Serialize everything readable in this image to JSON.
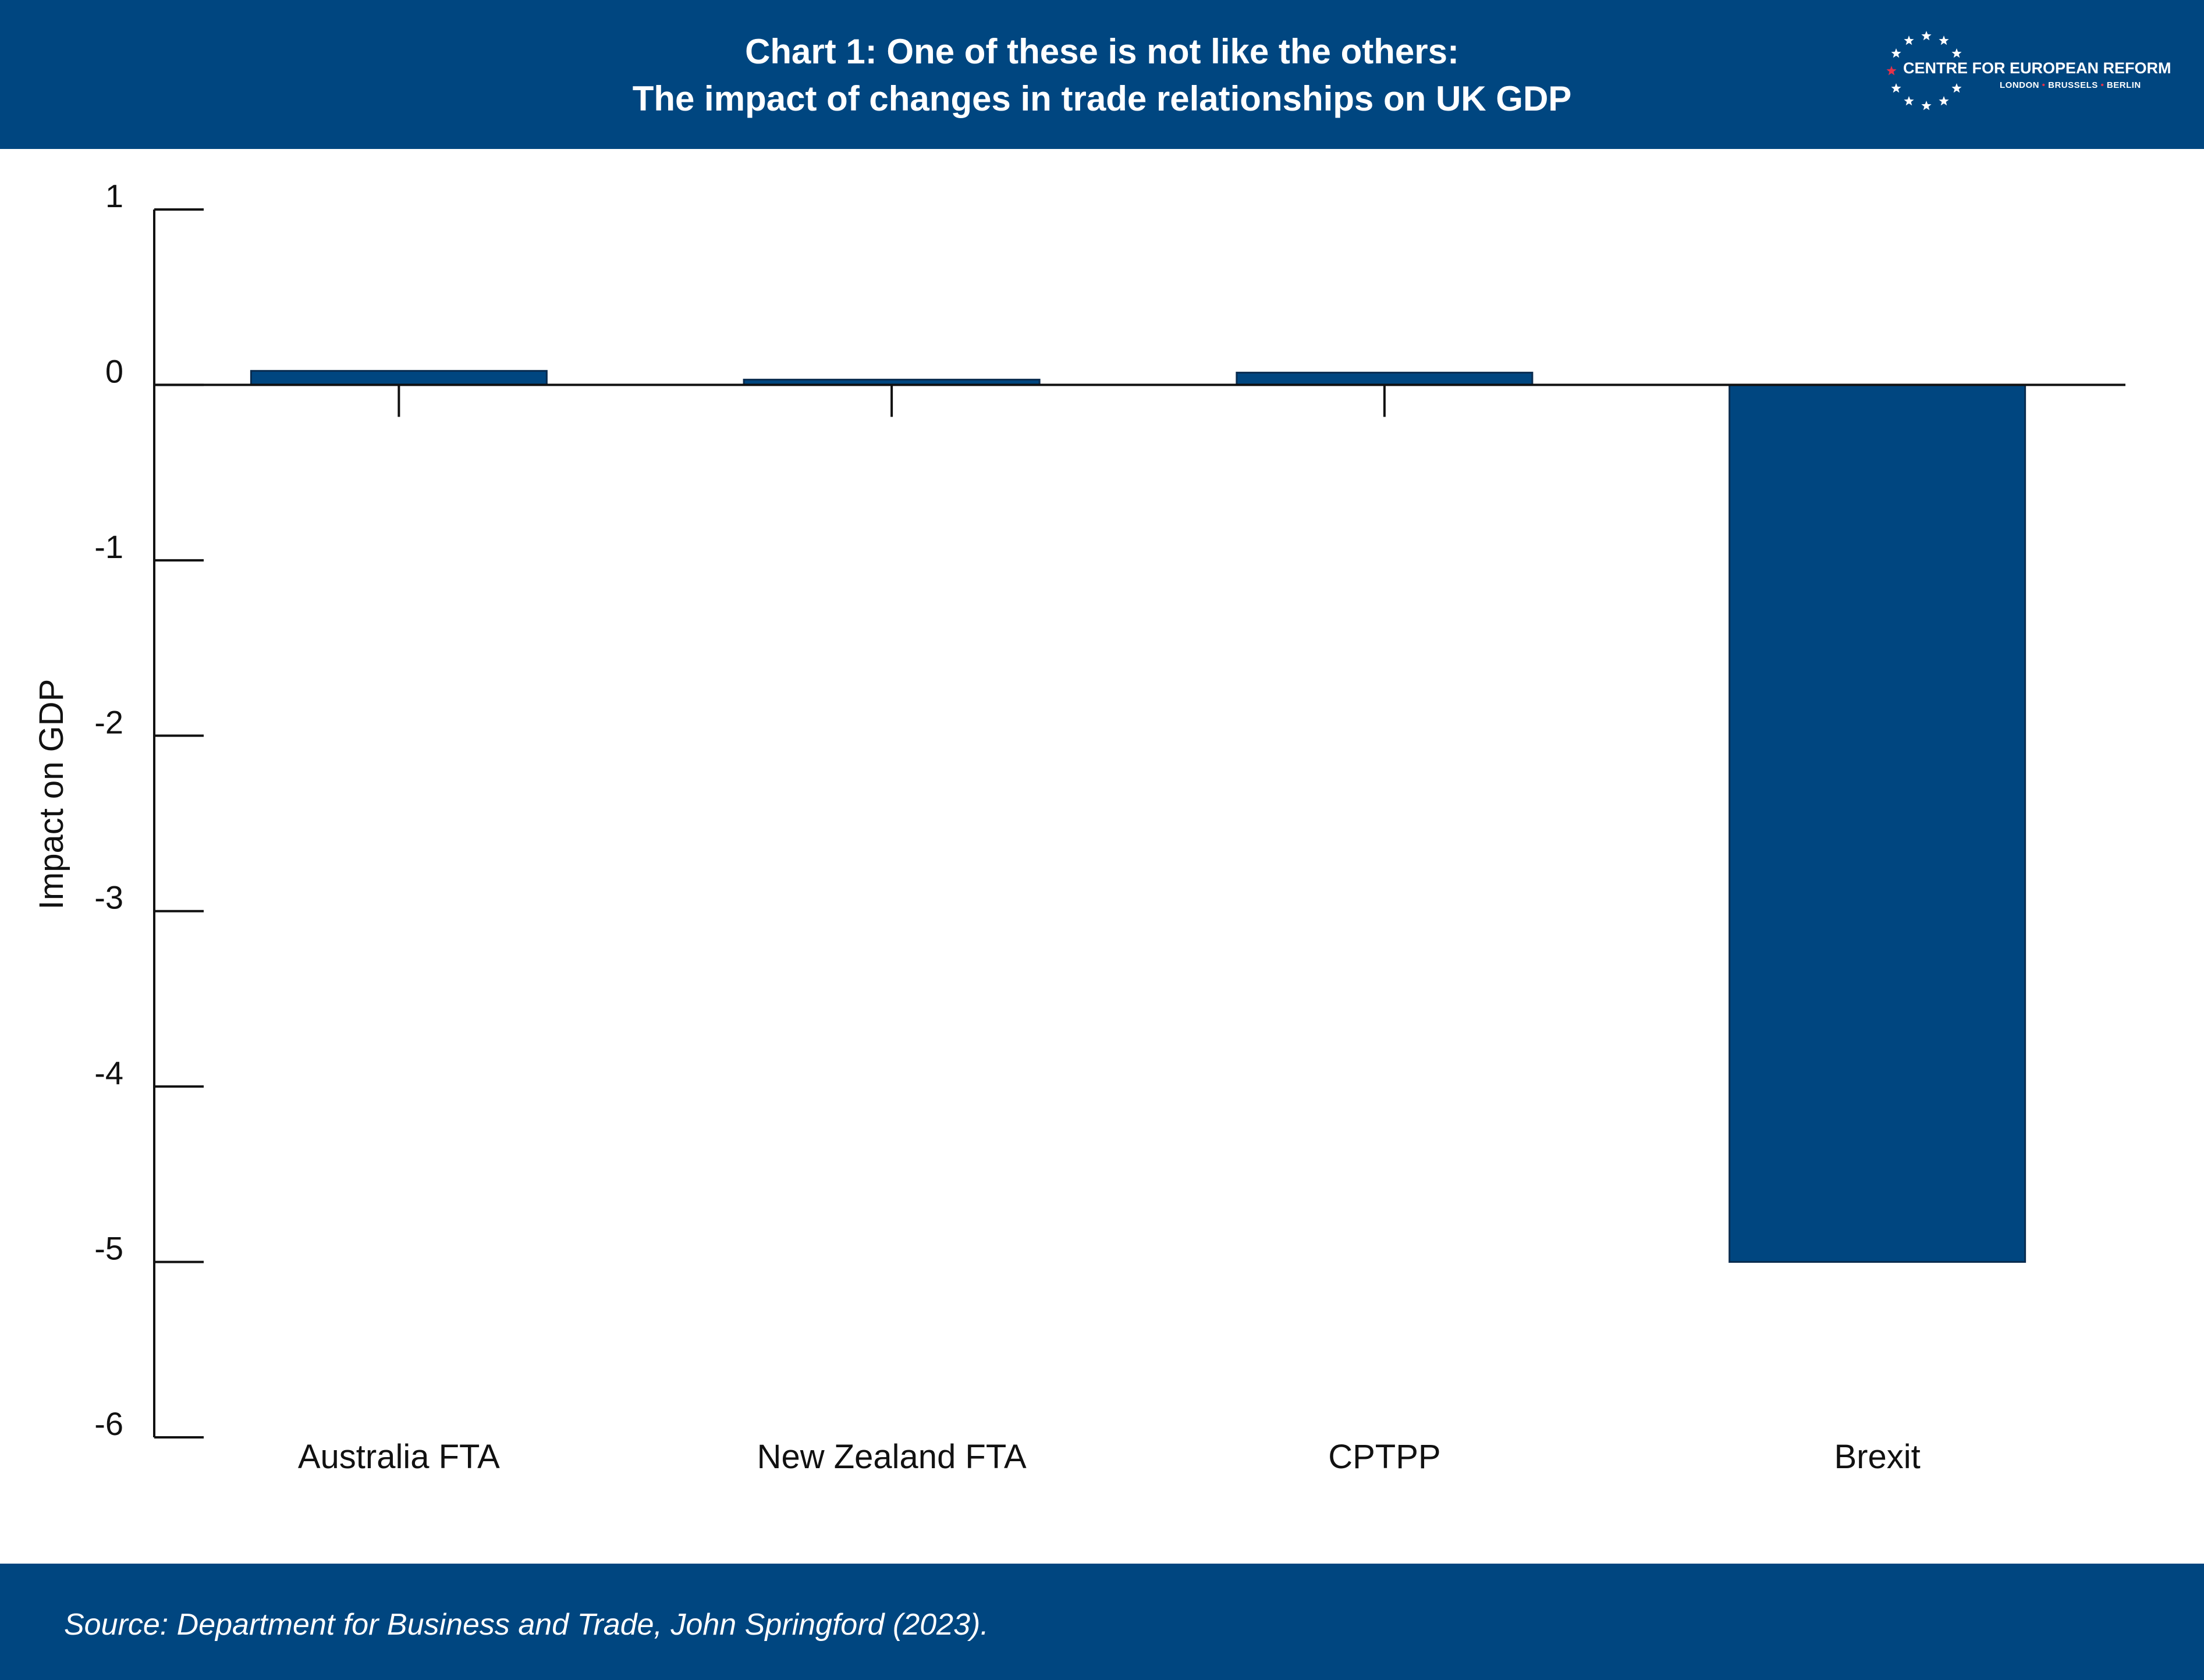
{
  "header": {
    "title_line1": "Chart 1: One of these is not like the others:",
    "title_line2": "The impact of changes in trade relationships on UK GDP"
  },
  "logo": {
    "name": "CENTRE FOR EUROPEAN REFORM",
    "city1": "LONDON",
    "city2": "BRUSSELS",
    "city3": "BERLIN",
    "icon": "eu-stars-circle"
  },
  "footer": {
    "source": "Source: Department for Business and Trade, John Springford (2023)."
  },
  "colors": {
    "brand": "#004680",
    "bar": "#004680",
    "star_accent": "#e3324a",
    "axis": "#111111"
  },
  "chart_data": {
    "type": "bar",
    "title": "Chart 1: One of these is not like the others: The impact of changes in trade relationships on UK GDP",
    "xlabel": "",
    "ylabel": "Impact on GDP",
    "categories": [
      "Australia FTA",
      "New Zealand FTA",
      "CPTPP",
      "Brexit"
    ],
    "values": [
      0.08,
      0.03,
      0.07,
      -5.0
    ],
    "ylim": [
      -6,
      1
    ],
    "yticks": [
      1,
      0,
      -1,
      -2,
      -3,
      -4,
      -5,
      -6
    ],
    "ytick_labels": [
      "1",
      "0",
      "-1",
      "-2",
      "-3",
      "-4",
      "-5",
      "-6"
    ],
    "grid": false,
    "legend": "none"
  }
}
